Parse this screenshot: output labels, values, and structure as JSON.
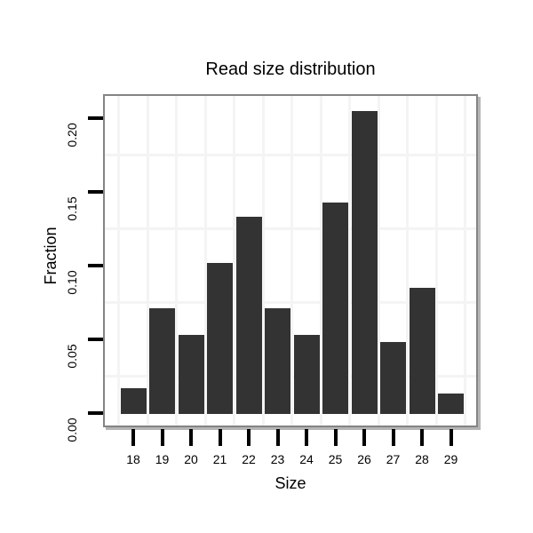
{
  "chart_data": {
    "type": "bar",
    "title": "Read size distribution",
    "xlabel": "Size",
    "ylabel": "Fraction",
    "categories": [
      "18",
      "19",
      "20",
      "21",
      "22",
      "23",
      "24",
      "25",
      "26",
      "27",
      "28",
      "29"
    ],
    "values": [
      0.017,
      0.071,
      0.053,
      0.102,
      0.133,
      0.071,
      0.053,
      0.143,
      0.205,
      0.048,
      0.085,
      0.013
    ],
    "y_ticks": [
      0.0,
      0.05,
      0.1,
      0.15,
      0.2
    ],
    "y_tick_labels": [
      "0.00",
      "0.05",
      "0.10",
      "0.15",
      "0.20"
    ],
    "minor_gridlines_y": [
      0.025,
      0.075,
      0.125,
      0.175
    ],
    "ylim": [
      0,
      0.215
    ],
    "grid": "minor gridlines only, light gray on white panel",
    "legend_position": "none",
    "colors": {
      "bar_fill": "#333333",
      "panel_border": "#848484",
      "panel_shadow": "#b5b5b5",
      "gridline": "#f4f4f4",
      "tick": "#000000",
      "text": "#000000",
      "background": "#ffffff"
    }
  }
}
